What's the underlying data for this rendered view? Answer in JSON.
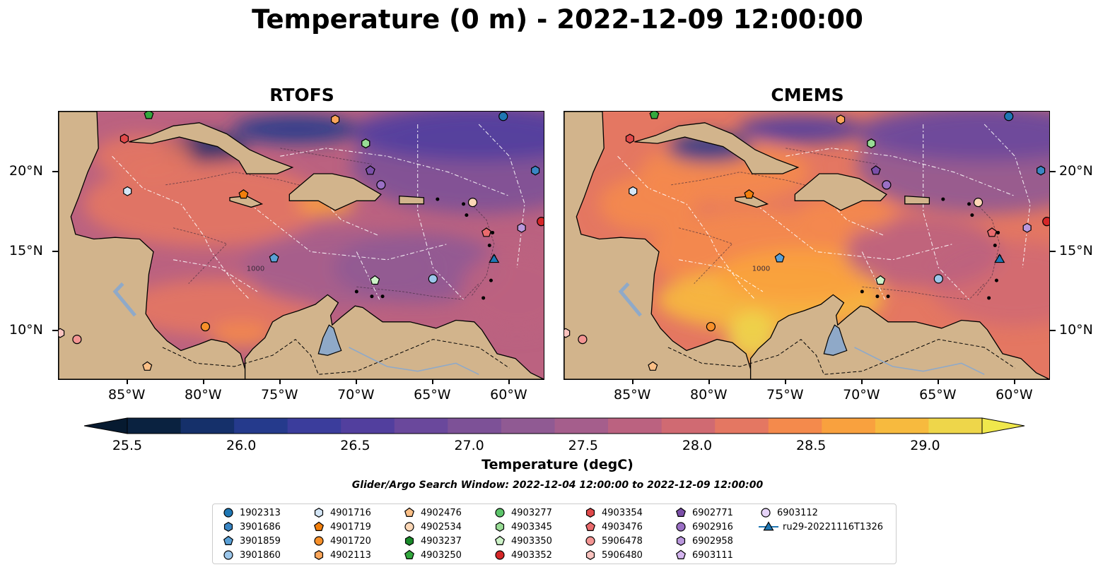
{
  "title": "Temperature (0 m) - 2022-12-09 12:00:00",
  "panels": [
    {
      "title": "RTOFS",
      "id": "rtofs"
    },
    {
      "title": "CMEMS",
      "id": "cmems"
    }
  ],
  "map": {
    "lon_range": [
      -89.5,
      -57.75
    ],
    "lat_range": [
      7.0,
      23.8
    ],
    "lon_ticks": [
      "85°W",
      "80°W",
      "75°W",
      "70°W",
      "65°W",
      "60°W"
    ],
    "lon_tick_values": [
      -85,
      -80,
      -75,
      -70,
      -65,
      -60
    ],
    "lat_ticks": [
      "10°N",
      "15°N",
      "20°N"
    ],
    "lat_tick_values": [
      10,
      15,
      20
    ],
    "land_color": "#d2b48c",
    "river_color": "#8fa9c8",
    "isobath_label": "1000"
  },
  "colorbar": {
    "label": "Temperature (degC)",
    "ticks": [
      "25.5",
      "26.0",
      "26.5",
      "27.0",
      "27.5",
      "28.0",
      "28.5",
      "29.0"
    ],
    "tick_values": [
      25.5,
      26.0,
      26.5,
      27.0,
      27.5,
      28.0,
      28.5,
      29.0
    ],
    "vmin": 25.5,
    "vmax": 29.25,
    "colors": [
      "#0a2240",
      "#15306a",
      "#253a8c",
      "#3b3d9c",
      "#523f9e",
      "#6a489c",
      "#7d5197",
      "#905a93",
      "#a55e8c",
      "#bb6280",
      "#d06a72",
      "#e47762",
      "#f48a4c",
      "#f9a13e",
      "#f7ba3e",
      "#eed64a"
    ],
    "extend": "both"
  },
  "search_window": "Glider/Argo Search Window: 2022-12-04 12:00:00 to 2022-12-09 12:00:00",
  "legend": [
    {
      "label": "1902313",
      "marker": "circle",
      "color": "#1f77b4"
    },
    {
      "label": "3901686",
      "marker": "hexagon",
      "color": "#3a86c4"
    },
    {
      "label": "3901859",
      "marker": "pentagon",
      "color": "#5aa0d6"
    },
    {
      "label": "3901860",
      "marker": "circle",
      "color": "#9bc6ea"
    },
    {
      "label": "4901716",
      "marker": "hexagon",
      "color": "#d4e6f6"
    },
    {
      "label": "4901719",
      "marker": "pentagon",
      "color": "#f27f0c"
    },
    {
      "label": "4901720",
      "marker": "circle",
      "color": "#f7902a"
    },
    {
      "label": "4902113",
      "marker": "hexagon",
      "color": "#fba65a"
    },
    {
      "label": "4902476",
      "marker": "pentagon",
      "color": "#fbbf86"
    },
    {
      "label": "4902534",
      "marker": "circle",
      "color": "#fcd7b6"
    },
    {
      "label": "4903237",
      "marker": "hexagon",
      "color": "#1a8a2a"
    },
    {
      "label": "4903250",
      "marker": "pentagon",
      "color": "#33a83e"
    },
    {
      "label": "4903277",
      "marker": "circle",
      "color": "#5cc46a"
    },
    {
      "label": "4903345",
      "marker": "hexagon",
      "color": "#98dc95"
    },
    {
      "label": "4903350",
      "marker": "pentagon",
      "color": "#cdf2c8"
    },
    {
      "label": "4903352",
      "marker": "circle",
      "color": "#d62728"
    },
    {
      "label": "4903354",
      "marker": "hexagon",
      "color": "#e0494a"
    },
    {
      "label": "4903476",
      "marker": "pentagon",
      "color": "#ea6b6d"
    },
    {
      "label": "5906478",
      "marker": "circle",
      "color": "#f39593"
    },
    {
      "label": "5906480",
      "marker": "hexagon",
      "color": "#fac3bf"
    },
    {
      "label": "6902771",
      "marker": "pentagon",
      "color": "#7b4fa8"
    },
    {
      "label": "6902916",
      "marker": "circle",
      "color": "#9a6fc4"
    },
    {
      "label": "6902958",
      "marker": "hexagon",
      "color": "#b997dc"
    },
    {
      "label": "6903111",
      "marker": "pentagon",
      "color": "#d4b5ef"
    },
    {
      "label": "6903112",
      "marker": "circle",
      "color": "#e6d3f8"
    },
    {
      "label": "ru29-20221116T1326",
      "marker": "triangle-line",
      "color": "#1f77b4"
    }
  ],
  "floats": [
    {
      "id": "1902313",
      "lon": -60.4,
      "lat": 23.5
    },
    {
      "id": "3901686",
      "lon": -58.3,
      "lat": 20.1
    },
    {
      "id": "3901859",
      "lon": -75.4,
      "lat": 14.6
    },
    {
      "id": "3901860",
      "lon": -65.0,
      "lat": 13.3
    },
    {
      "id": "4901716",
      "lon": -85.0,
      "lat": 18.8
    },
    {
      "id": "4901719",
      "lon": -77.4,
      "lat": 18.6
    },
    {
      "id": "4901720",
      "lon": -79.9,
      "lat": 10.3
    },
    {
      "id": "4902113",
      "lon": -71.4,
      "lat": 23.3
    },
    {
      "id": "4902476",
      "lon": -83.7,
      "lat": 7.8
    },
    {
      "id": "4902534",
      "lon": -62.4,
      "lat": 18.1
    },
    {
      "id": "4903237",
      "lon": -69.4,
      "lat": 21.8
    },
    {
      "id": "4903250",
      "lon": -83.6,
      "lat": 23.6
    },
    {
      "id": "4903345",
      "lon": -69.4,
      "lat": 21.8
    },
    {
      "id": "4903350",
      "lon": -68.8,
      "lat": 13.2
    },
    {
      "id": "4903352",
      "lon": -57.9,
      "lat": 16.9
    },
    {
      "id": "4903354",
      "lon": -85.2,
      "lat": 22.1
    },
    {
      "id": "4903476",
      "lon": -61.5,
      "lat": 16.2
    },
    {
      "id": "5906478",
      "lon": -88.3,
      "lat": 9.5
    },
    {
      "id": "5906480",
      "lon": -89.4,
      "lat": 9.9
    },
    {
      "id": "6902771",
      "lon": -69.1,
      "lat": 20.1
    },
    {
      "id": "6902916",
      "lon": -68.4,
      "lat": 19.2
    },
    {
      "id": "6902958",
      "lon": -59.2,
      "lat": 16.5
    },
    {
      "id": "ru29-20221116T1326",
      "lon": -61.0,
      "lat": 14.5
    }
  ]
}
